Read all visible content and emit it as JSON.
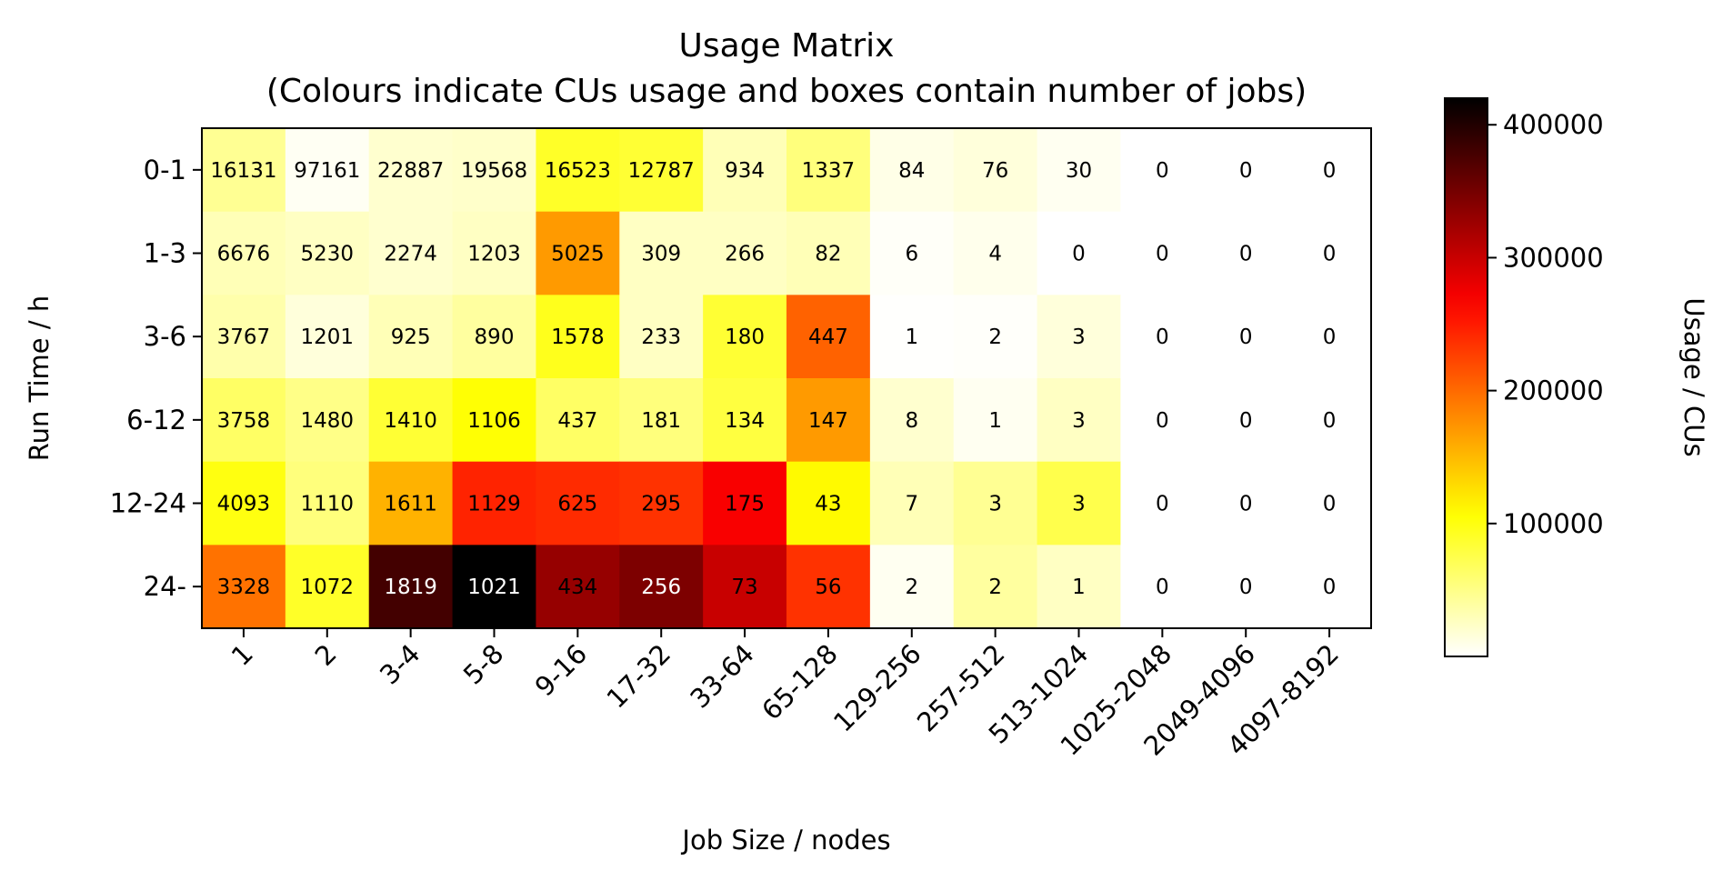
{
  "chart_data": {
    "type": "heatmap",
    "title": "Usage Matrix",
    "subtitle": "(Colours indicate CUs usage and boxes contain number of jobs)",
    "xlabel": "Job Size / nodes",
    "ylabel": "Run Time / h",
    "colorbar_label": "Usage / CUs",
    "colormap": "hot_r",
    "color_range": [
      0,
      420000
    ],
    "colorbar_ticks": [
      100000,
      200000,
      300000,
      400000
    ],
    "colorbar_tick_labels": [
      "100000",
      "200000",
      "300000",
      "400000"
    ],
    "x_categories": [
      "1",
      "2",
      "3-4",
      "5-8",
      "9-16",
      "17-32",
      "33-64",
      "65-128",
      "129-256",
      "257-512",
      "513-1024",
      "1025-2048",
      "2049-4096",
      "4097-8192"
    ],
    "y_categories": [
      "0-1",
      "1-3",
      "3-6",
      "6-12",
      "12-24",
      "24-"
    ],
    "job_counts": [
      [
        "16131",
        "97161",
        "22887",
        "19568",
        "16523",
        "12787",
        "934",
        "1337",
        "84",
        "76",
        "30",
        "0",
        "0",
        "0"
      ],
      [
        "6676",
        "5230",
        "2274",
        "1203",
        "5025",
        "309",
        "266",
        "82",
        "6",
        "4",
        "0",
        "0",
        "0",
        "0"
      ],
      [
        "3767",
        "1201",
        "925",
        "890",
        "1578",
        "233",
        "180",
        "447",
        "1",
        "2",
        "3",
        "0",
        "0",
        "0"
      ],
      [
        "3758",
        "1480",
        "1410",
        "1106",
        "437",
        "181",
        "134",
        "147",
        "8",
        "1",
        "3",
        "0",
        "0",
        "0"
      ],
      [
        "4093",
        "1110",
        "1611",
        "1129",
        "625",
        "295",
        "175",
        "43",
        "7",
        "3",
        "3",
        "0",
        "0",
        "0"
      ],
      [
        "3328",
        "1072",
        "1819",
        "1021",
        "434",
        "256",
        "73",
        "56",
        "2",
        "2",
        "1",
        "0",
        "0",
        "0"
      ]
    ],
    "usage": [
      [
        45000,
        5000,
        20000,
        22000,
        90000,
        85000,
        30000,
        55000,
        10000,
        15000,
        6000,
        0,
        0,
        0
      ],
      [
        30000,
        25000,
        20000,
        25000,
        170000,
        25000,
        25000,
        30000,
        3000,
        8000,
        0,
        0,
        0,
        0
      ],
      [
        35000,
        15000,
        30000,
        40000,
        95000,
        25000,
        85000,
        205000,
        1000,
        2000,
        15000,
        0,
        0,
        0
      ],
      [
        65000,
        50000,
        85000,
        105000,
        65000,
        55000,
        80000,
        170000,
        20000,
        6000,
        25000,
        0,
        0,
        0
      ],
      [
        100000,
        55000,
        155000,
        245000,
        240000,
        235000,
        270000,
        110000,
        30000,
        45000,
        75000,
        0,
        0,
        0
      ],
      [
        195000,
        90000,
        380000,
        420000,
        330000,
        345000,
        300000,
        235000,
        6000,
        40000,
        25000,
        0,
        0,
        0
      ]
    ]
  }
}
